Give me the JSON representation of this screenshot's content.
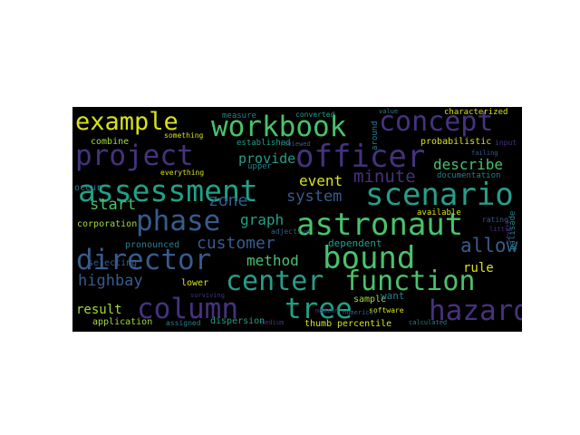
{
  "palette": {
    "yellow": "#d8e219",
    "lime": "#a0da39",
    "green": "#4ac16d",
    "teal": "#1fa187",
    "blue": "#277f8e",
    "slate": "#365c8d",
    "indigo": "#46327e",
    "purple": "#440154"
  },
  "words": [
    {
      "text": "example",
      "color": "#d8e219"
    },
    {
      "text": "workbook",
      "color": "#4ac16d"
    },
    {
      "text": "concept",
      "color": "#46327e"
    },
    {
      "text": "project",
      "color": "#46327e"
    },
    {
      "text": "officer",
      "color": "#46327e"
    },
    {
      "text": "assessment",
      "color": "#1fa187"
    },
    {
      "text": "scenario",
      "color": "#2a9c8a"
    },
    {
      "text": "phase",
      "color": "#365c8d"
    },
    {
      "text": "astronaut",
      "color": "#4ac16d"
    },
    {
      "text": "director",
      "color": "#365c8d"
    },
    {
      "text": "bound",
      "color": "#4ac16d"
    },
    {
      "text": "center",
      "color": "#2a9c8a"
    },
    {
      "text": "function",
      "color": "#4ac16d"
    },
    {
      "text": "column",
      "color": "#46327e"
    },
    {
      "text": "tree",
      "color": "#1fa187"
    },
    {
      "text": "hazard",
      "color": "#46327e"
    },
    {
      "text": "minute",
      "color": "#46327e"
    },
    {
      "text": "describe",
      "color": "#4ac16d"
    },
    {
      "text": "provide",
      "color": "#2a9c8a"
    },
    {
      "text": "customer",
      "color": "#365c8d"
    },
    {
      "text": "allow",
      "color": "#365c8d"
    },
    {
      "text": "method",
      "color": "#4ac16d"
    },
    {
      "text": "system",
      "color": "#365c8d"
    },
    {
      "text": "event",
      "color": "#d8e219"
    },
    {
      "text": "start",
      "color": "#4ac16d"
    },
    {
      "text": "zone",
      "color": "#365c8d"
    },
    {
      "text": "graph",
      "color": "#1fa187"
    },
    {
      "text": "rule",
      "color": "#d8e219"
    },
    {
      "text": "highbay",
      "color": "#365c8d"
    },
    {
      "text": "result",
      "color": "#a0da39"
    },
    {
      "text": "occur",
      "color": "#277f8e"
    },
    {
      "text": "combine",
      "color": "#a0da39"
    },
    {
      "text": "established",
      "color": "#1fa187"
    },
    {
      "text": "probabilistic",
      "color": "#d8e219"
    },
    {
      "text": "characterized",
      "color": "#d8e219"
    },
    {
      "text": "measure",
      "color": "#277f8e"
    },
    {
      "text": "converted",
      "color": "#1fa187"
    },
    {
      "text": "documentation",
      "color": "#277f8e"
    },
    {
      "text": "corporation",
      "color": "#a0da39"
    },
    {
      "text": "available",
      "color": "#d8e219"
    },
    {
      "text": "dependent",
      "color": "#1fa187"
    },
    {
      "text": "pronounced",
      "color": "#277f8e"
    },
    {
      "text": "selecting",
      "color": "#365c8d"
    },
    {
      "text": "application",
      "color": "#a0da39"
    },
    {
      "text": "assigned",
      "color": "#277f8e"
    },
    {
      "text": "dispersion",
      "color": "#1fa187"
    },
    {
      "text": "thumb",
      "color": "#d8e219"
    },
    {
      "text": "percentile",
      "color": "#d8e219"
    },
    {
      "text": "sample",
      "color": "#a0da39"
    },
    {
      "text": "software",
      "color": "#d8e219"
    },
    {
      "text": "want",
      "color": "#277f8e"
    },
    {
      "text": "lower",
      "color": "#d8e219"
    },
    {
      "text": "palisade",
      "color": "#277f8e"
    },
    {
      "text": "rating",
      "color": "#365c8d"
    },
    {
      "text": "everything",
      "color": "#d8e219"
    },
    {
      "text": "upper",
      "color": "#277f8e"
    },
    {
      "text": "around",
      "color": "#277f8e"
    },
    {
      "text": "something",
      "color": "#d8e219"
    },
    {
      "text": "value",
      "color": "#277f8e"
    },
    {
      "text": "reviewed",
      "color": "#365c8d"
    },
    {
      "text": "adjective",
      "color": "#365c8d"
    },
    {
      "text": "median",
      "color": "#46327e"
    },
    {
      "text": "medium",
      "color": "#46327e"
    },
    {
      "text": "numerical",
      "color": "#365c8d"
    },
    {
      "text": "calculated",
      "color": "#277f8e"
    },
    {
      "text": "surviving",
      "color": "#46327e"
    },
    {
      "text": "failing",
      "color": "#365c8d"
    },
    {
      "text": "input",
      "color": "#46327e"
    },
    {
      "text": "severe",
      "color": "#46327e"
    },
    {
      "text": "little",
      "color": "#46327e"
    }
  ]
}
